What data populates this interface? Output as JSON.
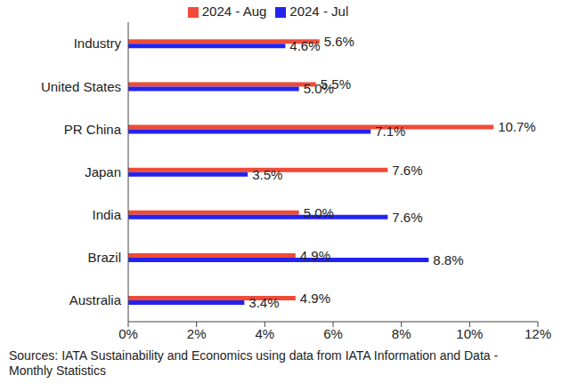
{
  "chart_data": {
    "type": "bar",
    "orientation": "horizontal",
    "categories": [
      "Industry",
      "United States",
      "PR China",
      "Japan",
      "India",
      "Brazil",
      "Australia"
    ],
    "series": [
      {
        "name": "2024 - Aug",
        "color": "#f04b37",
        "values": [
          5.6,
          5.5,
          10.7,
          7.6,
          5.0,
          4.9,
          4.9
        ],
        "value_labels": [
          "5.6%",
          "5.5%",
          "10.7%",
          "7.6%",
          "5.0%",
          "4.9%",
          "4.9%"
        ]
      },
      {
        "name": "2024 - Jul",
        "color": "#2323f0",
        "values": [
          4.6,
          5.0,
          7.1,
          3.5,
          7.6,
          8.8,
          3.4
        ],
        "value_labels": [
          "4.6%",
          "5.0%",
          "7.1%",
          "3.5%",
          "7.6%",
          "8.8%",
          "3.4%"
        ]
      }
    ],
    "xlim": [
      0,
      12
    ],
    "xticks": [
      {
        "value": 0,
        "label": "0%"
      },
      {
        "value": 2,
        "label": "2%"
      },
      {
        "value": 4,
        "label": "4%"
      },
      {
        "value": 6,
        "label": "6%"
      },
      {
        "value": 8,
        "label": "8%"
      },
      {
        "value": 10,
        "label": "10%"
      },
      {
        "value": 12,
        "label": "12%"
      }
    ],
    "grid": false,
    "legend": "top",
    "data_labels": true,
    "annotations": [
      "Sources: IATA Sustainability and Economics using data from IATA Information and Data - Monthly Statistics"
    ]
  }
}
